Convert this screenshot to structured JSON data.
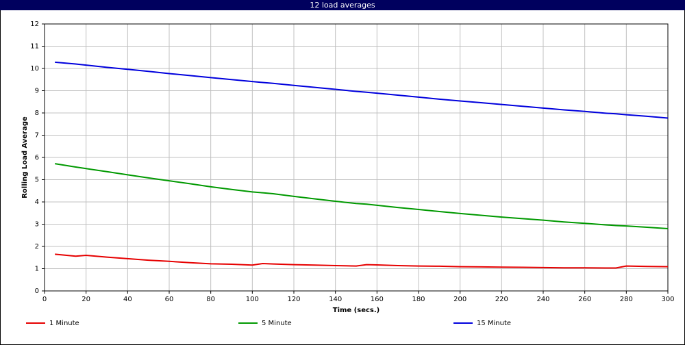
{
  "chart_data": {
    "type": "line",
    "title": "12 load averages",
    "x_label": "Time (secs.)",
    "y_label": "Rolling Load Average",
    "x": [
      5,
      15,
      20,
      30,
      40,
      50,
      60,
      70,
      80,
      90,
      100,
      105,
      110,
      120,
      130,
      140,
      150,
      155,
      160,
      170,
      180,
      190,
      200,
      210,
      220,
      230,
      240,
      250,
      260,
      270,
      275,
      280,
      290,
      300
    ],
    "series": [
      {
        "name": "1 Minute",
        "color": "#e60000",
        "values": [
          1.65,
          1.56,
          1.6,
          1.52,
          1.45,
          1.38,
          1.33,
          1.27,
          1.22,
          1.2,
          1.16,
          1.23,
          1.21,
          1.18,
          1.16,
          1.14,
          1.12,
          1.18,
          1.17,
          1.14,
          1.12,
          1.11,
          1.09,
          1.08,
          1.07,
          1.06,
          1.05,
          1.04,
          1.04,
          1.03,
          1.03,
          1.12,
          1.1,
          1.09
        ]
      },
      {
        "name": "5 Minute",
        "color": "#009900",
        "values": [
          5.72,
          5.57,
          5.5,
          5.36,
          5.22,
          5.08,
          4.95,
          4.82,
          4.68,
          4.56,
          4.45,
          4.41,
          4.37,
          4.25,
          4.14,
          4.03,
          3.93,
          3.9,
          3.85,
          3.75,
          3.66,
          3.57,
          3.48,
          3.4,
          3.32,
          3.25,
          3.18,
          3.1,
          3.04,
          2.97,
          2.94,
          2.92,
          2.86,
          2.8
        ]
      },
      {
        "name": "15 Minute",
        "color": "#0000dd",
        "values": [
          10.28,
          10.2,
          10.15,
          10.05,
          9.96,
          9.87,
          9.77,
          9.68,
          9.59,
          9.5,
          9.41,
          9.37,
          9.33,
          9.24,
          9.15,
          9.06,
          8.97,
          8.93,
          8.89,
          8.8,
          8.71,
          8.62,
          8.54,
          8.46,
          8.38,
          8.3,
          8.22,
          8.14,
          8.07,
          7.99,
          7.96,
          7.92,
          7.85,
          7.77
        ]
      }
    ],
    "xlim": [
      0,
      300
    ],
    "xticks": [
      0,
      20,
      40,
      60,
      80,
      100,
      120,
      140,
      160,
      180,
      200,
      220,
      240,
      260,
      280,
      300
    ],
    "ylim": [
      0,
      12
    ],
    "yticks": [
      0,
      1,
      2,
      3,
      4,
      5,
      6,
      7,
      8,
      9,
      10,
      11,
      12
    ],
    "grid": true,
    "legend": "bottom"
  }
}
